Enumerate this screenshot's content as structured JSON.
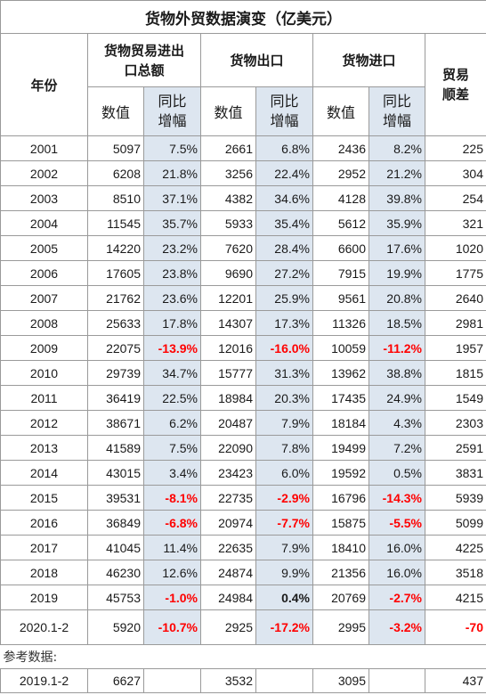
{
  "title": "货物外贸数据演变（亿美元）",
  "headers": {
    "year": "年份",
    "total": "货物贸易进出口总额",
    "exports": "货物出口",
    "imports": "货物进口",
    "balance": "贸易顺差",
    "value": "数值",
    "yoy": "同比增幅"
  },
  "rows": [
    {
      "year": "2001",
      "total": "5097",
      "total_yoy": "7.5%",
      "exp": "2661",
      "exp_yoy": "6.8%",
      "imp": "2436",
      "imp_yoy": "8.2%",
      "bal": "225"
    },
    {
      "year": "2002",
      "total": "6208",
      "total_yoy": "21.8%",
      "exp": "3256",
      "exp_yoy": "22.4%",
      "imp": "2952",
      "imp_yoy": "21.2%",
      "bal": "304"
    },
    {
      "year": "2003",
      "total": "8510",
      "total_yoy": "37.1%",
      "exp": "4382",
      "exp_yoy": "34.6%",
      "imp": "4128",
      "imp_yoy": "39.8%",
      "bal": "254"
    },
    {
      "year": "2004",
      "total": "11545",
      "total_yoy": "35.7%",
      "exp": "5933",
      "exp_yoy": "35.4%",
      "imp": "5612",
      "imp_yoy": "35.9%",
      "bal": "321"
    },
    {
      "year": "2005",
      "total": "14220",
      "total_yoy": "23.2%",
      "exp": "7620",
      "exp_yoy": "28.4%",
      "imp": "6600",
      "imp_yoy": "17.6%",
      "bal": "1020"
    },
    {
      "year": "2006",
      "total": "17605",
      "total_yoy": "23.8%",
      "exp": "9690",
      "exp_yoy": "27.2%",
      "imp": "7915",
      "imp_yoy": "19.9%",
      "bal": "1775"
    },
    {
      "year": "2007",
      "total": "21762",
      "total_yoy": "23.6%",
      "exp": "12201",
      "exp_yoy": "25.9%",
      "imp": "9561",
      "imp_yoy": "20.8%",
      "bal": "2640"
    },
    {
      "year": "2008",
      "total": "25633",
      "total_yoy": "17.8%",
      "exp": "14307",
      "exp_yoy": "17.3%",
      "imp": "11326",
      "imp_yoy": "18.5%",
      "bal": "2981"
    },
    {
      "year": "2009",
      "total": "22075",
      "total_yoy": "-13.9%",
      "exp": "12016",
      "exp_yoy": "-16.0%",
      "imp": "10059",
      "imp_yoy": "-11.2%",
      "bal": "1957"
    },
    {
      "year": "2010",
      "total": "29739",
      "total_yoy": "34.7%",
      "exp": "15777",
      "exp_yoy": "31.3%",
      "imp": "13962",
      "imp_yoy": "38.8%",
      "bal": "1815"
    },
    {
      "year": "2011",
      "total": "36419",
      "total_yoy": "22.5%",
      "exp": "18984",
      "exp_yoy": "20.3%",
      "imp": "17435",
      "imp_yoy": "24.9%",
      "bal": "1549"
    },
    {
      "year": "2012",
      "total": "38671",
      "total_yoy": "6.2%",
      "exp": "20487",
      "exp_yoy": "7.9%",
      "imp": "18184",
      "imp_yoy": "4.3%",
      "bal": "2303"
    },
    {
      "year": "2013",
      "total": "41589",
      "total_yoy": "7.5%",
      "exp": "22090",
      "exp_yoy": "7.8%",
      "imp": "19499",
      "imp_yoy": "7.2%",
      "bal": "2591"
    },
    {
      "year": "2014",
      "total": "43015",
      "total_yoy": "3.4%",
      "exp": "23423",
      "exp_yoy": "6.0%",
      "imp": "19592",
      "imp_yoy": "0.5%",
      "bal": "3831"
    },
    {
      "year": "2015",
      "total": "39531",
      "total_yoy": "-8.1%",
      "exp": "22735",
      "exp_yoy": "-2.9%",
      "imp": "16796",
      "imp_yoy": "-14.3%",
      "bal": "5939"
    },
    {
      "year": "2016",
      "total": "36849",
      "total_yoy": "-6.8%",
      "exp": "20974",
      "exp_yoy": "-7.7%",
      "imp": "15875",
      "imp_yoy": "-5.5%",
      "bal": "5099"
    },
    {
      "year": "2017",
      "total": "41045",
      "total_yoy": "11.4%",
      "exp": "22635",
      "exp_yoy": "7.9%",
      "imp": "18410",
      "imp_yoy": "16.0%",
      "bal": "4225"
    },
    {
      "year": "2018",
      "total": "46230",
      "total_yoy": "12.6%",
      "exp": "24874",
      "exp_yoy": "9.9%",
      "imp": "21356",
      "imp_yoy": "16.0%",
      "bal": "3518"
    },
    {
      "year": "2019",
      "total": "45753",
      "total_yoy": "-1.0%",
      "exp": "24984",
      "exp_yoy": "0.4%",
      "imp": "20769",
      "imp_yoy": "-2.7%",
      "bal": "4215"
    },
    {
      "year": "2020.1-2",
      "total": "5920",
      "total_yoy": "-10.7%",
      "exp": "2925",
      "exp_yoy": "-17.2%",
      "imp": "2995",
      "imp_yoy": "-3.2%",
      "bal": "-70"
    }
  ],
  "reference": {
    "label": "参考数据:",
    "row": {
      "year": "2019.1-2",
      "total": "6627",
      "total_yoy": "",
      "exp": "3532",
      "exp_yoy": "",
      "imp": "3095",
      "imp_yoy": "",
      "bal": "437"
    }
  },
  "colors": {
    "negative": "#ff0000",
    "shade": "#dde6f0",
    "grid": "#9a9a9a"
  }
}
